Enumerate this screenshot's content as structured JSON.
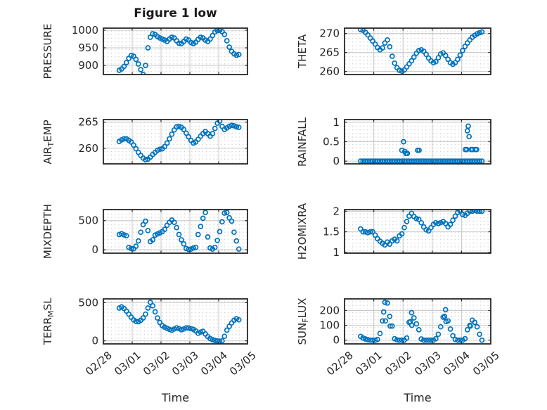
{
  "title": "Figure 1 low",
  "marker_color": "#0072BD",
  "axis_color": "#262626",
  "major_grid_color": "#c9c9c9",
  "minor_dot_color": "#c5c5c5",
  "x_axis": {
    "label": "Time",
    "tick_labels": [
      "02/28",
      "03/01",
      "03/02",
      "03/03",
      "03/04",
      "03/05"
    ],
    "tick_positions": [
      0,
      1,
      2,
      3,
      4,
      5
    ],
    "xlim": [
      0,
      5
    ]
  },
  "time_days": [
    0.55,
    0.633,
    0.716,
    0.799,
    0.882,
    0.965,
    1.048,
    1.131,
    1.214,
    1.297,
    1.38,
    1.463,
    1.546,
    1.629,
    1.712,
    1.795,
    1.878,
    1.961,
    2.044,
    2.127,
    2.21,
    2.293,
    2.376,
    2.459,
    2.542,
    2.625,
    2.708,
    2.791,
    2.874,
    2.957,
    3.04,
    3.123,
    3.206,
    3.289,
    3.372,
    3.455,
    3.538,
    3.621,
    3.704,
    3.787,
    3.87,
    3.953,
    4.036,
    4.119,
    4.202,
    4.285,
    4.368,
    4.451,
    4.534,
    4.617,
    4.7
  ],
  "chart_data": [
    {
      "key": "pressure",
      "type": "scatter",
      "grid": {
        "row": 0,
        "col": 0
      },
      "ylabel_parts": [
        {
          "text": "PRESSURE"
        }
      ],
      "ylabel_text": "PRESSURE",
      "yticks": [
        900,
        950,
        1000
      ],
      "ytick_labels": [
        "900",
        "950",
        "1000"
      ],
      "ylim": [
        874,
        1006
      ],
      "values": [
        886,
        890,
        897,
        908,
        920,
        928,
        926,
        917,
        904,
        888,
        874,
        900,
        950,
        980,
        990,
        988,
        982,
        978,
        975,
        972,
        968,
        975,
        980,
        978,
        970,
        963,
        962,
        968,
        975,
        972,
        965,
        962,
        966,
        974,
        980,
        978,
        972,
        968,
        975,
        985,
        995,
        999,
        1000,
        996,
        988,
        970,
        952,
        940,
        933,
        929,
        931
      ]
    },
    {
      "key": "theta",
      "type": "scatter",
      "grid": {
        "row": 0,
        "col": 1
      },
      "ylabel_parts": [
        {
          "text": "THETA"
        }
      ],
      "ylabel_text": "THETA",
      "yticks": [
        260,
        265,
        270
      ],
      "ytick_labels": [
        "260",
        "265",
        "270"
      ],
      "ylim": [
        259.2,
        271.4
      ],
      "values": [
        271,
        270.8,
        270.3,
        269.6,
        268.8,
        268,
        267.2,
        266.3,
        265.7,
        266.2,
        267.5,
        268.3,
        266.5,
        264,
        262.2,
        261,
        260.3,
        260.1,
        260.4,
        261.2,
        262,
        262.8,
        263.8,
        264.8,
        265.5,
        265.7,
        265.3,
        264.5,
        263.5,
        262.8,
        262.3,
        262.6,
        263.6,
        264.6,
        264.9,
        264.2,
        263.2,
        262.3,
        261.9,
        262.3,
        263.2,
        264.3,
        265.5,
        266.6,
        267.5,
        268.3,
        269,
        269.5,
        269.9,
        270.2,
        270.4
      ]
    },
    {
      "key": "air_temp",
      "type": "scatter",
      "grid": {
        "row": 1,
        "col": 0
      },
      "ylabel_parts": [
        {
          "text": "AIR"
        },
        {
          "text": "T",
          "sub": true
        },
        {
          "text": "EMP"
        }
      ],
      "ylabel_text": "AIR_TEMP",
      "yticks": [
        260,
        265
      ],
      "ytick_labels": [
        "260",
        "265"
      ],
      "ylim": [
        257,
        265.5
      ],
      "values": [
        261.3,
        261.6,
        261.8,
        261.8,
        261.5,
        261.2,
        260.6,
        259.9,
        259.2,
        258.6,
        258.1,
        257.8,
        257.9,
        258.3,
        258.8,
        259.2,
        259.6,
        259.8,
        259.9,
        260.3,
        261,
        261.8,
        262.7,
        263.5,
        264.1,
        264.2,
        264,
        263.6,
        262.9,
        262.2,
        261.5,
        261,
        261.2,
        261.7,
        262.3,
        262.8,
        263.2,
        262.8,
        262.3,
        262.8,
        263.8,
        264.8,
        265.2,
        264.2,
        263.6,
        263.9,
        264.2,
        264.4,
        264.3,
        264.1,
        264
      ]
    },
    {
      "key": "rainfall",
      "type": "scatter",
      "grid": {
        "row": 1,
        "col": 1
      },
      "ylabel_parts": [
        {
          "text": "RAINFALL"
        }
      ],
      "ylabel_text": "RAINFALL",
      "yticks": [
        0,
        0.5,
        1
      ],
      "ytick_labels": [
        "0",
        "0.5",
        "1"
      ],
      "ylim": [
        -0.07,
        1.07
      ],
      "values": [
        0,
        0,
        0,
        0,
        0,
        0,
        0,
        0,
        0,
        0,
        0,
        0,
        0,
        0,
        0,
        0,
        0,
        0,
        0,
        0,
        0,
        0,
        0,
        0,
        0,
        0,
        0,
        0,
        0,
        0,
        0,
        0,
        0,
        0,
        0,
        0,
        0,
        0,
        0,
        0,
        0,
        0,
        0,
        0,
        0,
        0,
        0,
        0,
        0,
        0,
        0
      ],
      "extra_points": [
        [
          1.96,
          0.28
        ],
        [
          2.02,
          0.5
        ],
        [
          2.06,
          0.25
        ],
        [
          2.1,
          0.2
        ],
        [
          2.15,
          0.2
        ],
        [
          2.5,
          0.28
        ],
        [
          2.55,
          0.28
        ],
        [
          4.13,
          0.3
        ],
        [
          4.18,
          0.3
        ],
        [
          4.2,
          0.78
        ],
        [
          4.23,
          0.9
        ],
        [
          4.26,
          0.63
        ],
        [
          4.33,
          0.3
        ],
        [
          4.38,
          0.3
        ],
        [
          4.47,
          0.3
        ],
        [
          4.52,
          0.3
        ]
      ]
    },
    {
      "key": "mixdepth",
      "type": "scatter",
      "grid": {
        "row": 2,
        "col": 0
      },
      "ylabel_parts": [
        {
          "text": "MIXDEPTH"
        }
      ],
      "ylabel_text": "MIXDEPTH",
      "yticks": [
        0,
        500
      ],
      "ytick_labels": [
        "0",
        "500"
      ],
      "ylim": [
        -60,
        690
      ],
      "values": [
        260,
        275,
        255,
        240,
        40,
        20,
        15,
        60,
        150,
        300,
        430,
        490,
        330,
        140,
        170,
        250,
        270,
        290,
        310,
        350,
        420,
        470,
        510,
        470,
        380,
        260,
        170,
        100,
        20,
        5,
        10,
        30,
        40,
        260,
        400,
        540,
        640,
        220,
        30,
        10,
        40,
        160,
        310,
        480,
        630,
        640,
        550,
        490,
        300,
        150,
        10
      ]
    },
    {
      "key": "h2omixra",
      "type": "scatter",
      "grid": {
        "row": 2,
        "col": 1
      },
      "ylabel_parts": [
        {
          "text": "H2OMIXRA"
        }
      ],
      "ylabel_text": "H2OMIXRA",
      "yticks": [
        1,
        1.5,
        2
      ],
      "ytick_labels": [
        "1",
        "1.5",
        "2"
      ],
      "ylim": [
        0.98,
        2.04
      ],
      "values": [
        1.57,
        1.5,
        1.5,
        1.48,
        1.5,
        1.5,
        1.42,
        1.33,
        1.27,
        1.22,
        1.18,
        1.25,
        1.2,
        1.28,
        1.32,
        1.28,
        1.4,
        1.45,
        1.6,
        1.75,
        1.88,
        1.95,
        1.87,
        1.82,
        1.8,
        1.72,
        1.62,
        1.55,
        1.52,
        1.6,
        1.68,
        1.72,
        1.7,
        1.72,
        1.75,
        1.7,
        1.62,
        1.68,
        1.78,
        1.88,
        1.97,
        2,
        1.92,
        1.9,
        1.95,
        2,
        2,
        2.02,
        2,
        2,
        2
      ]
    },
    {
      "key": "terr_msl",
      "type": "scatter",
      "grid": {
        "row": 3,
        "col": 0
      },
      "ylabel_parts": [
        {
          "text": "TERR"
        },
        {
          "text": "M",
          "sub": true
        },
        {
          "text": "SL"
        }
      ],
      "ylabel_text": "TERR_MSL",
      "yticks": [
        0,
        500
      ],
      "ytick_labels": [
        "0",
        "500"
      ],
      "ylim": [
        -40,
        550
      ],
      "values": [
        430,
        445,
        425,
        390,
        350,
        310,
        275,
        255,
        250,
        270,
        300,
        350,
        430,
        505,
        460,
        380,
        300,
        240,
        200,
        180,
        165,
        150,
        140,
        155,
        170,
        160,
        145,
        155,
        170,
        168,
        160,
        150,
        130,
        100,
        115,
        125,
        90,
        55,
        30,
        15,
        5,
        0,
        -5,
        0,
        60,
        140,
        190,
        235,
        270,
        290,
        275
      ]
    },
    {
      "key": "sun_flux",
      "type": "scatter",
      "grid": {
        "row": 3,
        "col": 1
      },
      "ylabel_parts": [
        {
          "text": "SUN"
        },
        {
          "text": "F",
          "sub": true
        },
        {
          "text": "LUX"
        }
      ],
      "ylabel_text": "SUN_FLUX",
      "yticks": [
        0,
        100,
        200
      ],
      "ytick_labels": [
        "0",
        "100",
        "200"
      ],
      "ylim": [
        -25,
        278
      ],
      "values": [
        25,
        15,
        8,
        3,
        0,
        0,
        0,
        5,
        45,
        130,
        255,
        250,
        160,
        95,
        10,
        2,
        0,
        0,
        0,
        15,
        120,
        185,
        150,
        110,
        70,
        8,
        0,
        0,
        0,
        0,
        0,
        10,
        40,
        90,
        155,
        205,
        130,
        75,
        30,
        5,
        0,
        0,
        0,
        10,
        70,
        100,
        135,
        120,
        90,
        40,
        0
      ],
      "extra_points": [
        [
          1.34,
          190
        ],
        [
          1.4,
          130
        ],
        [
          1.56,
          95
        ],
        [
          2.25,
          125
        ],
        [
          2.3,
          100
        ],
        [
          3.42,
          160
        ],
        [
          3.47,
          125
        ],
        [
          4.3,
          95
        ]
      ]
    }
  ]
}
